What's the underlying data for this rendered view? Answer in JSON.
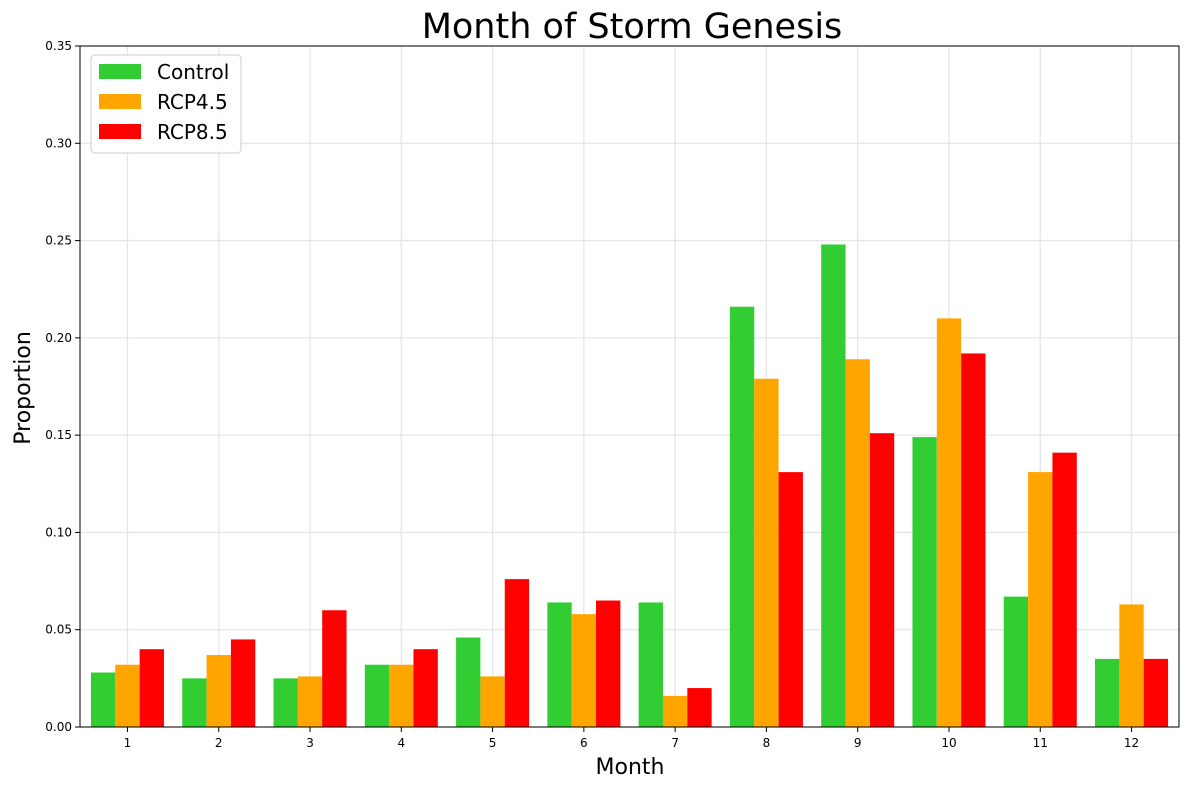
{
  "chart_data": {
    "type": "bar",
    "title": "Month of Storm Genesis",
    "xlabel": "Month",
    "ylabel": "Proportion",
    "categories": [
      "1",
      "2",
      "3",
      "4",
      "5",
      "6",
      "7",
      "8",
      "9",
      "10",
      "11",
      "12"
    ],
    "ylim": [
      0,
      0.35
    ],
    "yticks": [
      "0.00",
      "0.05",
      "0.10",
      "0.15",
      "0.20",
      "0.25",
      "0.30",
      "0.35"
    ],
    "grid": true,
    "legend_position": "top-left",
    "series": [
      {
        "name": "Control",
        "color": "#32cd32",
        "values": [
          0.028,
          0.025,
          0.025,
          0.032,
          0.046,
          0.064,
          0.064,
          0.216,
          0.248,
          0.149,
          0.067,
          0.035
        ]
      },
      {
        "name": "RCP4.5",
        "color": "#ffa500",
        "values": [
          0.032,
          0.037,
          0.026,
          0.032,
          0.026,
          0.058,
          0.016,
          0.179,
          0.189,
          0.21,
          0.131,
          0.063
        ]
      },
      {
        "name": "RCP8.5",
        "color": "#ff0000",
        "values": [
          0.04,
          0.045,
          0.06,
          0.04,
          0.076,
          0.065,
          0.02,
          0.131,
          0.151,
          0.192,
          0.141,
          0.035
        ]
      }
    ]
  }
}
